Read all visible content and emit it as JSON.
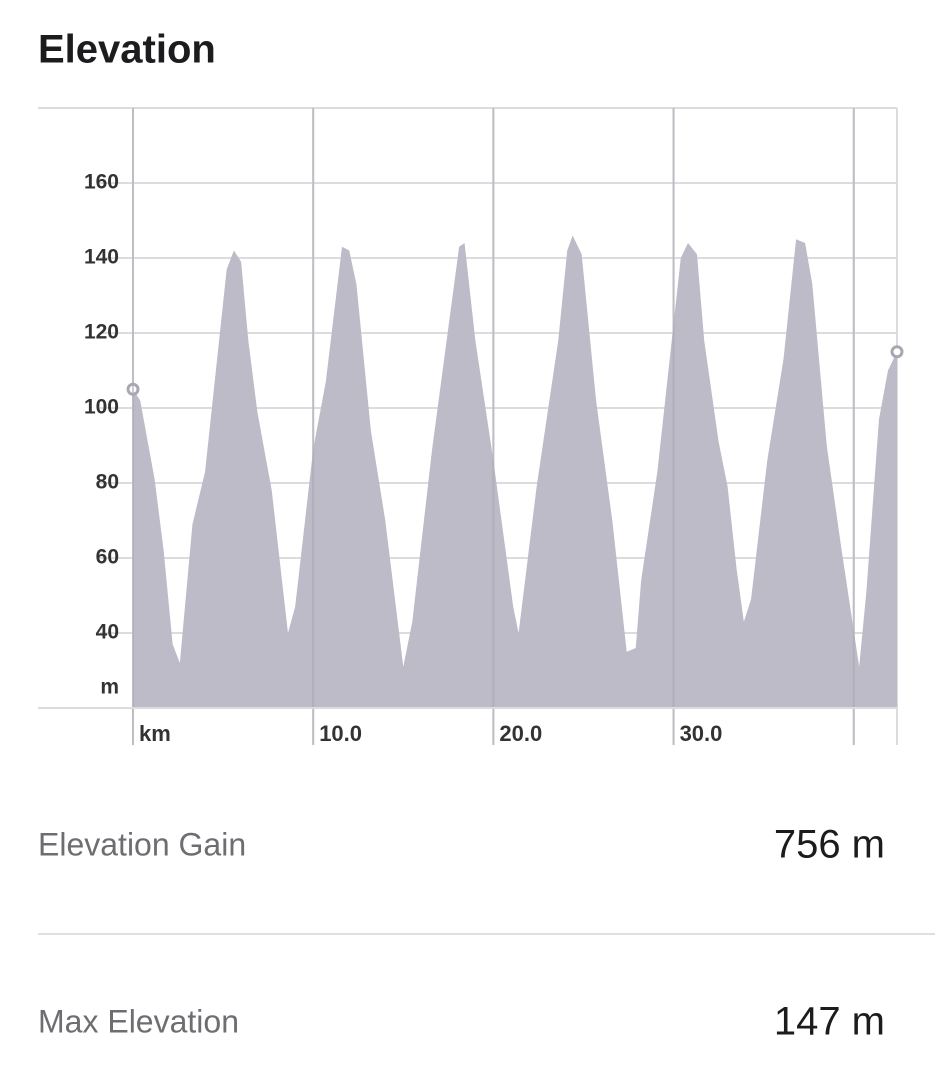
{
  "title": "Elevation",
  "chart_data": {
    "type": "area",
    "color": "#bcbbc7",
    "xlabel": "km",
    "ylabel": "m",
    "x": [
      0,
      0.4,
      1.2,
      1.7,
      2.2,
      2.6,
      3.3,
      4.0,
      5.2,
      5.6,
      6.0,
      6.4,
      6.9,
      7.7,
      8.6,
      9.0,
      10.0,
      10.7,
      11.6,
      12.0,
      12.4,
      13.2,
      14.0,
      15.0,
      15.5,
      16.6,
      18.1,
      18.4,
      19.0,
      20.0,
      21.1,
      21.4,
      22.4,
      23.6,
      24.1,
      24.4,
      24.9,
      25.7,
      26.6,
      27.4,
      27.9,
      28.2,
      29.1,
      30.4,
      30.8,
      31.3,
      31.7,
      32.5,
      33.0,
      33.5,
      33.9,
      34.3,
      35.2,
      36.1,
      36.8,
      37.3,
      37.7,
      38.5,
      39.3,
      40.3,
      40.7,
      41.4,
      41.9,
      42.4
    ],
    "values": [
      105,
      102,
      81,
      62,
      37,
      32,
      69,
      83,
      137,
      142,
      139,
      118,
      99,
      78,
      40,
      47,
      89,
      107,
      143,
      142,
      133,
      94,
      70,
      31,
      43,
      89,
      143,
      144,
      118,
      86,
      47,
      40,
      79,
      118,
      142,
      146,
      141,
      102,
      70,
      35,
      36,
      54,
      83,
      140,
      144,
      141,
      118,
      91,
      79,
      57,
      43,
      49,
      86,
      113,
      145,
      144,
      133,
      90,
      63,
      31,
      51,
      97,
      110,
      115
    ],
    "xlim": [
      0,
      42.4
    ],
    "ylim": [
      20,
      180
    ],
    "xticks": [
      {
        "value": 10,
        "label": "10.0"
      },
      {
        "value": 20,
        "label": "20.0"
      },
      {
        "value": 30,
        "label": "30.0"
      }
    ],
    "xgrid": [
      0,
      10,
      20,
      30,
      40
    ],
    "yticks": [
      40,
      60,
      80,
      100,
      120,
      140,
      160
    ],
    "grid": true
  },
  "stats": [
    {
      "label": "Elevation Gain",
      "value": "756 m"
    },
    {
      "label": "Max Elevation",
      "value": "147 m"
    }
  ]
}
